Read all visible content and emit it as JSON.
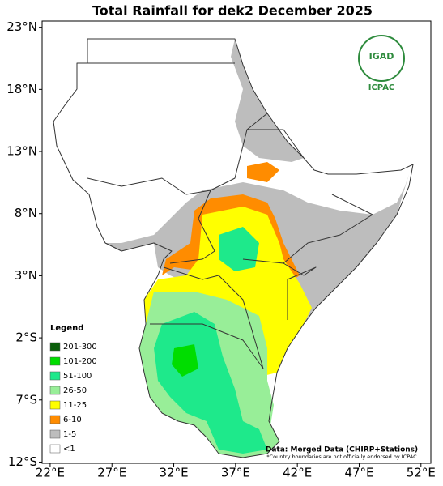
{
  "map": {
    "title": "Total Rainfall for dek2 December 2025",
    "xlim": [
      21.35,
      52.8
    ],
    "ylim": [
      -12.1,
      23.5
    ],
    "lon_ticks": [
      {
        "value": 22,
        "label": "22°E"
      },
      {
        "value": 27,
        "label": "27°E"
      },
      {
        "value": 32,
        "label": "32°E"
      },
      {
        "value": 37,
        "label": "37°E"
      },
      {
        "value": 42,
        "label": "42°E"
      },
      {
        "value": 47,
        "label": "47°E"
      },
      {
        "value": 52,
        "label": "52°E"
      }
    ],
    "lat_ticks": [
      {
        "value": 23,
        "label": "23°N"
      },
      {
        "value": 18,
        "label": "18°N"
      },
      {
        "value": 13,
        "label": "13°N"
      },
      {
        "value": 8,
        "label": "8°N"
      },
      {
        "value": 3,
        "label": "3°N"
      },
      {
        "value": -2,
        "label": "2°S"
      },
      {
        "value": -7,
        "label": "7°S"
      },
      {
        "value": -12,
        "label": "12°S"
      }
    ],
    "legend": {
      "title": "Legend",
      "items": [
        {
          "label": "201-300",
          "color": "#0b5e0b"
        },
        {
          "label": "101-200",
          "color": "#00dd00"
        },
        {
          "label": "51-100",
          "color": "#1ee98b"
        },
        {
          "label": "26-50",
          "color": "#98ee98"
        },
        {
          "label": "11-25",
          "color": "#ffff00"
        },
        {
          "label": "6-10",
          "color": "#ff8c00"
        },
        {
          "label": "1-5",
          "color": "#bdbdbd"
        },
        {
          "label": "<1",
          "color": "#ffffff"
        }
      ]
    },
    "logo": {
      "name": "IGAD",
      "org": "ICPAC"
    },
    "source": "Data: Merged Data (CHIRP+Stations)",
    "note": "*Country boundaries are not officially endorsed by ICPAC"
  }
}
